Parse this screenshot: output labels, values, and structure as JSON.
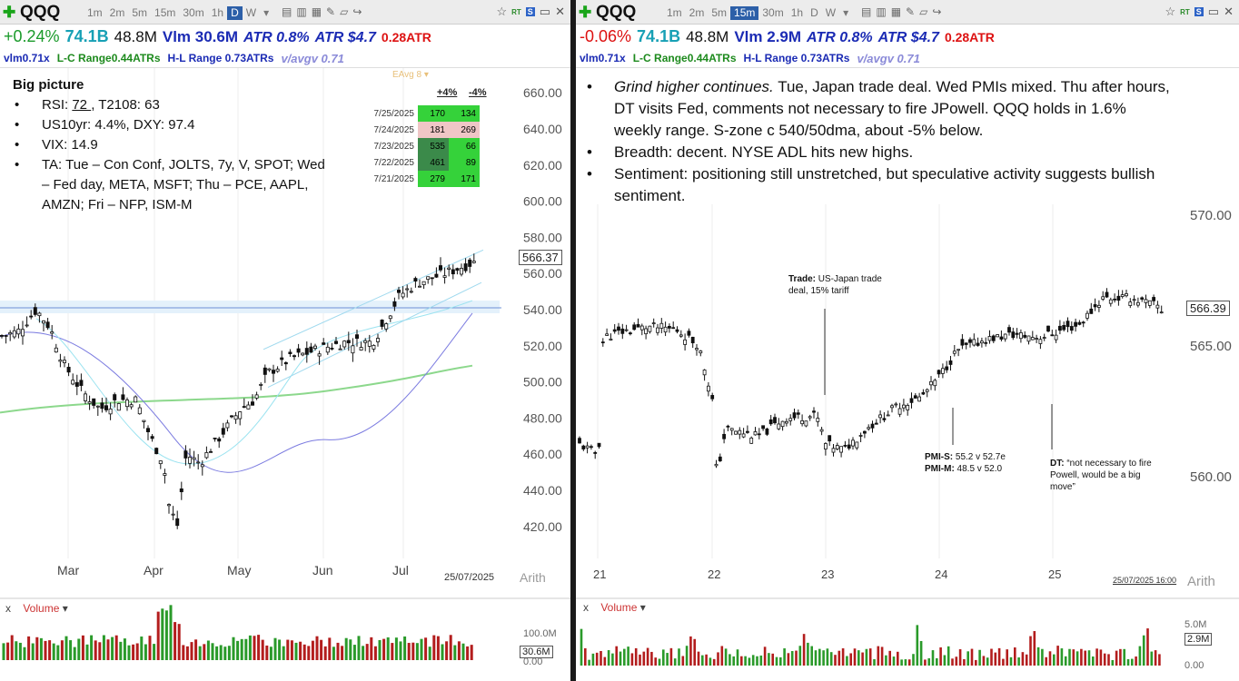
{
  "left": {
    "symbol": "QQQ",
    "timeframes": [
      "1m",
      "2m",
      "5m",
      "15m",
      "30m",
      "1h",
      "D",
      "W"
    ],
    "active_timeframe": "D",
    "stats": {
      "change": "+0.24%",
      "mktcap": "74.1B",
      "float": "48.8M",
      "vlm": "Vlm 30.6M",
      "atr_pct": "ATR 0.8%",
      "atr_abs": "ATR $4.7",
      "atr_ratio": "0.28ATR",
      "change_color": "#1a9a2a"
    },
    "stats2": {
      "vlm_ratio": "vlm0.71x",
      "lc_range": "L-C Range0.44ATRs",
      "hl_range": "H-L Range 0.73ATRs",
      "vavg": "v/avgv 0.71"
    },
    "notes": {
      "title": "Big picture",
      "bullets": [
        {
          "pre": "RSI: ",
          "u": "72 ",
          "post": ", T2108: 63"
        },
        {
          "pre": "US10yr: 4.4%, DXY: 97.4",
          "u": "",
          "post": ""
        },
        {
          "pre": "VIX: 14.9",
          "u": "",
          "post": ""
        },
        {
          "pre": "TA: Tue – Con Conf, JOLTS, 7y, V, SPOT; Wed – Fed day, META, MSFT; Thu – PCE, AAPL, AMZN; Fri – NFP, ISM-M",
          "u": "",
          "post": ""
        }
      ]
    },
    "eavg_label": "EAvg 8",
    "breadth_table": {
      "headers": [
        "+4%",
        "-4%"
      ],
      "rows": [
        {
          "date": "7/25/2025",
          "up": "170",
          "down": "134",
          "up_bg": "#35d23a",
          "down_bg": "#35d23a"
        },
        {
          "date": "7/24/2025",
          "up": "181",
          "down": "269",
          "up_bg": "#efc6c6",
          "down_bg": "#efc6c6"
        },
        {
          "date": "7/23/2025",
          "up": "535",
          "down": "66",
          "up_bg": "#3b8a4a",
          "down_bg": "#35d23a"
        },
        {
          "date": "7/22/2025",
          "up": "461",
          "down": "89",
          "up_bg": "#3b8a4a",
          "down_bg": "#35d23a"
        },
        {
          "date": "7/21/2025",
          "up": "279",
          "down": "171",
          "up_bg": "#35d23a",
          "down_bg": "#35d23a"
        }
      ]
    },
    "price_axis": [
      "660.00",
      "640.00",
      "620.00",
      "600.00",
      "580.00",
      "560.00",
      "540.00",
      "520.00",
      "500.00",
      "480.00",
      "460.00",
      "440.00",
      "420.00"
    ],
    "last_price": "566.37",
    "x_labels": [
      "Mar",
      "Apr",
      "May",
      "Jun",
      "Jul"
    ],
    "footer_date": "25/07/2025",
    "scale_label": "Arith",
    "volume_label": "Volume",
    "vol_axis": [
      "100.0M",
      "0.00"
    ],
    "vol_last": "30.6M"
  },
  "right": {
    "symbol": "QQQ",
    "timeframes": [
      "1m",
      "2m",
      "5m",
      "15m",
      "30m",
      "1h",
      "D",
      "W"
    ],
    "active_timeframe": "15m",
    "stats": {
      "change": "-0.06%",
      "mktcap": "74.1B",
      "float": "48.8M",
      "vlm": "Vlm 2.9M",
      "atr_pct": "ATR 0.8%",
      "atr_abs": "ATR $4.7",
      "atr_ratio": "0.28ATR",
      "change_color": "#d11"
    },
    "stats2": {
      "vlm_ratio": "vlm0.71x",
      "lc_range": "L-C Range0.44ATRs",
      "hl_range": "H-L Range 0.73ATRs",
      "vavg": "v/avgv 0.71"
    },
    "notes": [
      {
        "italic": "Grind higher continues.",
        "text": " Tue, Japan trade deal. Wed PMIs mixed.  Thu after hours, DT visits Fed, comments not necessary to fire JPowell.  QQQ holds in 1.6% weekly range.  S-zone c 540/50dma, about -5% below."
      },
      {
        "italic": "",
        "text": "Breadth: decent.  NYSE ADL hits new highs."
      },
      {
        "italic": "",
        "text": "Sentiment: positioning still unstretched, but speculative activity suggests bullish sentiment."
      }
    ],
    "annotations": {
      "trade_b": "Trade:",
      "trade_t": " US-Japan trade deal, 15% tariff",
      "pmis_b": "PMI-S:",
      "pmis_t": " 55.2 v 52.7e",
      "pmim_b": "PMI-M:",
      "pmim_t": " 48.5 v 52.0",
      "dt_b": "DT:",
      "dt_t": " “not necessary to fire Powell, would be a big move”"
    },
    "price_axis": [
      "570.00",
      "565.00",
      "560.00"
    ],
    "last_price": "566.39",
    "x_labels": [
      "21",
      "22",
      "23",
      "24",
      "25"
    ],
    "footer_date": "25/07/2025 16:00",
    "scale_label": "Arith",
    "volume_label": "Volume",
    "vol_axis": [
      "5.0M",
      "0.00"
    ],
    "vol_last": "2.9M"
  }
}
